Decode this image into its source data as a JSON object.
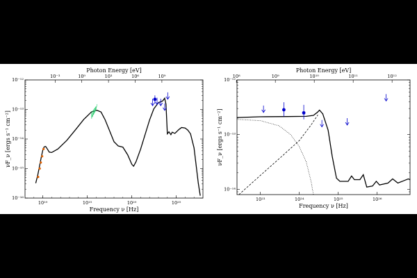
{
  "chart_data": [
    {
      "type": "line",
      "title": "",
      "xlabel": "Frequency ν [Hz]",
      "x2label": "Photon Energy [eV]",
      "ylabel": "νF_ν [ergs s⁻¹ cm⁻²]",
      "xscale": "log",
      "yscale": "log",
      "xlim": [
        100000000.0,
        1e+28
      ],
      "ylim": [
        1e-16,
        1e-12
      ],
      "x_ticks": [
        {
          "value": 10000000000.0,
          "label": "10¹⁰"
        },
        {
          "value": 1000000000000000.0,
          "label": "10¹⁵"
        },
        {
          "value": 1e+20,
          "label": "10²⁰"
        },
        {
          "value": 1e+25,
          "label": "10²⁵"
        }
      ],
      "x2_ticks": [
        {
          "value": 241800000000.0,
          "label": "10⁻³"
        },
        {
          "value": 241800000000000.0,
          "label": "10⁰"
        },
        {
          "value": 2.418e+17,
          "label": "10³"
        },
        {
          "value": 2.418e+20,
          "label": "10⁶"
        },
        {
          "value": 2.418e+23,
          "label": "10⁹"
        }
      ],
      "y_ticks": [
        {
          "value": 1e-16,
          "label": "10⁻¹⁶"
        },
        {
          "value": 1e-15,
          "label": "10⁻¹⁵"
        },
        {
          "value": 1e-14,
          "label": "10⁻¹⁴"
        },
        {
          "value": 1e-13,
          "label": "10⁻¹³"
        },
        {
          "value": 1e-12,
          "label": "10⁻¹²"
        }
      ],
      "series": [
        {
          "name": "",
          "style": "solid",
          "color": "#000000",
          "points": [
            [
              1600000000.0,
              3.2e-16
            ],
            [
              2700000000.0,
              6e-16
            ],
            [
              4500000000.0,
              1.3e-15
            ],
            [
              7000000000.0,
              2.6e-15
            ],
            [
              10000000000.0,
              4.2e-15
            ],
            [
              14000000000.0,
              5.4e-15
            ],
            [
              21000000000.0,
              5.6e-15
            ],
            [
              32000000000.0,
              4.6e-15
            ],
            [
              53000000000.0,
              3.6e-15
            ],
            [
              100000000000.0,
              3.5e-15
            ],
            [
              500000000000.0,
              4.6e-15
            ],
            [
              5000000000000.0,
              9e-15
            ],
            [
              50000000000000.0,
              2.1e-14
            ],
            [
              400000000000000.0,
              4.6e-14
            ],
            [
              3000000000000000.0,
              8.3e-14
            ],
            [
              1.2e+16,
              9.4e-14
            ],
            [
              3.5e+16,
              8.2e-14
            ],
            [
              1e+17,
              4.5e-14
            ],
            [
              3e+17,
              2e-14
            ],
            [
              1e+18,
              8.1e-15
            ],
            [
              3e+18,
              5.8e-15
            ],
            [
              1e+19,
              5.3e-15
            ],
            [
              3.5e+19,
              2.9e-15
            ],
            [
              1e+20,
              1.4e-15
            ],
            [
              1.6e+20,
              1.2e-15
            ],
            [
              3e+20,
              1.7e-15
            ],
            [
              1e+21,
              4.6e-15
            ],
            [
              3e+21,
              1.35e-14
            ],
            [
              1e+22,
              4.4e-14
            ],
            [
              3e+22,
              1.05e-13
            ],
            [
              1e+23,
              1.7e-13
            ],
            [
              3e+23,
              1.95e-13
            ],
            [
              5e+23,
              2.4e-13
            ],
            [
              7e+23,
              1.5e-13
            ],
            [
              1e+24,
              1.5e-14
            ],
            [
              1.5e+24,
              1.75e-14
            ],
            [
              2.5e+24,
              1.4e-14
            ],
            [
              3.5e+24,
              1.7e-14
            ],
            [
              7e+24,
              1.55e-14
            ],
            [
              2e+25,
              2.1e-14
            ],
            [
              4e+25,
              2.45e-14
            ],
            [
              1e+26,
              2.35e-14
            ],
            [
              2e+26,
              2e-14
            ],
            [
              4e+26,
              1.5e-14
            ],
            [
              1e+27,
              5e-15
            ],
            [
              3e+27,
              3.2e-16
            ],
            [
              5e+27,
              1.2e-16
            ]
          ]
        }
      ],
      "points": [
        {
          "x": 3000000000.0,
          "y": 5.2e-16,
          "color": "#e06000"
        },
        {
          "x": 4500000000.0,
          "y": 1e-15,
          "color": "#e06000"
        },
        {
          "x": 6000000000.0,
          "y": 1.6e-15,
          "color": "#e06000"
        },
        {
          "x": 8500000000.0,
          "y": 2.6e-15,
          "color": "#e06000"
        },
        {
          "x": 12000000000.0,
          "y": 4.6e-15,
          "color": "#e06000"
        }
      ],
      "bands": [
        {
          "x": [
            3000000000000000.0,
            9000000000000000.0
          ],
          "y": [
            6e-14,
            1.15e-13
          ],
          "color": "#2ecc71"
        }
      ],
      "arrows": [
        {
          "x": 2.2e+22,
          "y": 2.3e-13,
          "color": "#0000cc"
        },
        {
          "x": 7e+22,
          "y": 2.5e-13,
          "color": "#0000cc"
        },
        {
          "x": 1.8e+23,
          "y": 2.3e-13,
          "color": "#0000cc"
        },
        {
          "x": 5e+23,
          "y": 1.6e-13,
          "color": "#0000cc"
        },
        {
          "x": 1.1e+24,
          "y": 3.8e-13,
          "color": "#0000cc"
        }
      ],
      "error_points": [
        {
          "x": 4e+22,
          "y": 2.2e-13,
          "yerr": [
            1.6e-13,
            3e-13
          ],
          "color": "#0000cc"
        }
      ]
    },
    {
      "type": "line",
      "title": "",
      "xlabel": "Frequency ν [Hz]",
      "x2label": "Photon Energy [eV]",
      "ylabel": "νF_ν [ergs s⁻¹ cm⁻²]",
      "xscale": "log",
      "yscale": "log",
      "xlim": [
        2.5e+22,
        7e+26
      ],
      "ylim": [
        8e-15,
        1e-12
      ],
      "x_ticks": [
        {
          "value": 1e+23,
          "label": "10²³"
        },
        {
          "value": 1e+24,
          "label": "10²⁴"
        },
        {
          "value": 1e+25,
          "label": "10²⁵"
        },
        {
          "value": 1e+26,
          "label": "10²⁶"
        }
      ],
      "x2_ticks": [
        {
          "value": 2.418e+22,
          "label": "10⁸"
        },
        {
          "value": 2.418e+23,
          "label": "10⁹"
        },
        {
          "value": 2.418e+24,
          "label": "10¹⁰"
        },
        {
          "value": 2.418e+25,
          "label": "10¹¹"
        },
        {
          "value": 2.418e+26,
          "label": "10¹²"
        }
      ],
      "y_ticks": [
        {
          "value": 1e-14,
          "label": "10⁻¹⁴"
        },
        {
          "value": 1e-13,
          "label": "10⁻¹³"
        },
        {
          "value": 1e-12,
          "label": "10⁻¹²"
        }
      ],
      "series": [
        {
          "name": "",
          "style": "solid",
          "color": "#000000",
          "points": [
            [
              2.5e+22,
              2.05e-13
            ],
            [
              1e+23,
              2.12e-13
            ],
            [
              5e+23,
              2.14e-13
            ],
            [
              1.5e+24,
              2.16e-13
            ],
            [
              2.3e+24,
              2.25e-13
            ],
            [
              2.9e+24,
              2.55e-13
            ],
            [
              3.3e+24,
              2.8e-13
            ],
            [
              4e+24,
              2.4e-13
            ],
            [
              5.5e+24,
              1.2e-13
            ],
            [
              7e+24,
              4e-14
            ],
            [
              9e+24,
              1.6e-14
            ],
            [
              1.1e+25,
              1.4e-14
            ],
            [
              1.8e+25,
              1.4e-14
            ],
            [
              2.2e+25,
              1.75e-14
            ],
            [
              2.6e+25,
              1.5e-14
            ],
            [
              3.6e+25,
              1.5e-14
            ],
            [
              4.4e+25,
              1.85e-14
            ],
            [
              5.4e+25,
              1.1e-14
            ],
            [
              7.6e+25,
              1.15e-14
            ],
            [
              9.5e+25,
              1.4e-14
            ],
            [
              1.15e+26,
              1.2e-14
            ],
            [
              1.9e+26,
              1.3e-14
            ],
            [
              2.5e+26,
              1.55e-14
            ],
            [
              3.4e+26,
              1.3e-14
            ],
            [
              5e+26,
              1.45e-14
            ],
            [
              6.3e+26,
              1.55e-14
            ],
            [
              7e+26,
              1.5e-14
            ]
          ]
        },
        {
          "name": "",
          "style": "dotted",
          "color": "#000000",
          "points": [
            [
              2.5e+22,
              1.9e-13
            ],
            [
              1e+23,
              1.8e-13
            ],
            [
              3e+23,
              1.45e-13
            ],
            [
              6e+23,
              1e-13
            ],
            [
              1e+24,
              6e-14
            ],
            [
              1.5e+24,
              3.2e-14
            ],
            [
              2e+24,
              1.4e-14
            ],
            [
              2.3e+24,
              8e-15
            ]
          ]
        },
        {
          "name": "",
          "style": "dashed",
          "color": "#000000",
          "points": [
            [
              2.8e+22,
              8e-15
            ],
            [
              1e+23,
              1.8e-14
            ],
            [
              3e+23,
              3.6e-14
            ],
            [
              1e+24,
              7.8e-14
            ],
            [
              2e+24,
              1.5e-13
            ],
            [
              3e+24,
              2.3e-13
            ]
          ]
        }
      ],
      "arrows": [
        {
          "x": 1.2e+23,
          "y": 3.4e-13,
          "color": "#0000cc"
        },
        {
          "x": 3.8e+24,
          "y": 1.85e-13,
          "color": "#0000cc"
        },
        {
          "x": 1.7e+25,
          "y": 2e-13,
          "color": "#0000cc"
        },
        {
          "x": 1.7e+26,
          "y": 5.5e-13,
          "color": "#0000cc"
        }
      ],
      "error_points": [
        {
          "x": 4e+23,
          "y": 2.85e-13,
          "yerr": [
            2.15e-13,
            3.9e-13
          ],
          "color": "#0000cc"
        },
        {
          "x": 1.3e+24,
          "y": 2.5e-13,
          "yerr": [
            1.9e-13,
            3.5e-13
          ],
          "color": "#0000cc"
        }
      ]
    }
  ]
}
